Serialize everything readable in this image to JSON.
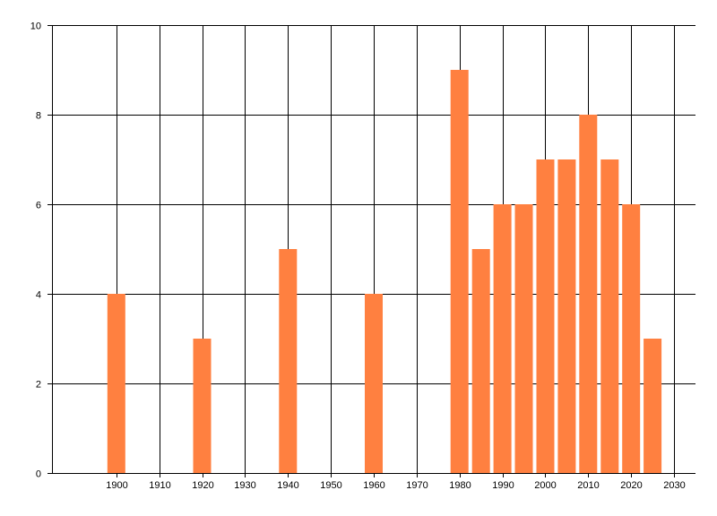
{
  "chart_data": {
    "type": "bar",
    "x": [
      1900,
      1920,
      1940,
      1960,
      1980,
      1985,
      1990,
      1995,
      2000,
      2005,
      2010,
      2015,
      2020,
      2025
    ],
    "values": [
      4,
      3,
      5,
      4,
      9,
      5,
      6,
      6,
      7,
      7,
      8,
      7,
      6,
      3
    ],
    "title": "",
    "xlabel": "",
    "ylabel": "",
    "xlim": [
      1885,
      2035
    ],
    "ylim": [
      0,
      10
    ],
    "x_ticks": [
      1900,
      1910,
      1920,
      1930,
      1940,
      1950,
      1960,
      1970,
      1980,
      1990,
      2000,
      2010,
      2020,
      2030
    ],
    "y_ticks": [
      0,
      2,
      4,
      6,
      8,
      10
    ],
    "grid": true,
    "legend": "none",
    "bar_color": "#FF8040"
  }
}
